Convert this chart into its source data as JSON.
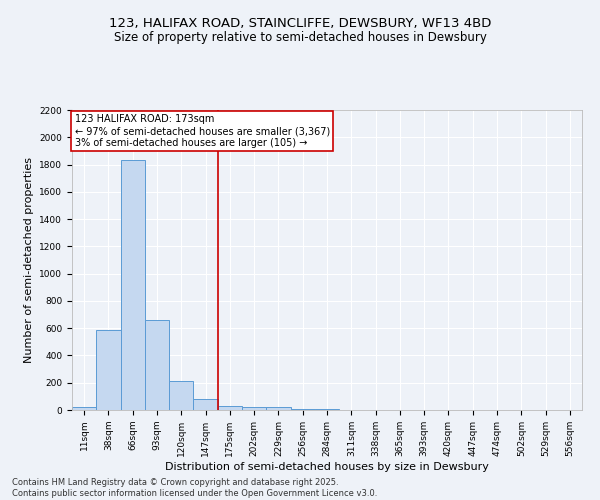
{
  "title1": "123, HALIFAX ROAD, STAINCLIFFE, DEWSBURY, WF13 4BD",
  "title2": "Size of property relative to semi-detached houses in Dewsbury",
  "xlabel": "Distribution of semi-detached houses by size in Dewsbury",
  "ylabel": "Number of semi-detached properties",
  "categories": [
    "11sqm",
    "38sqm",
    "66sqm",
    "93sqm",
    "120sqm",
    "147sqm",
    "175sqm",
    "202sqm",
    "229sqm",
    "256sqm",
    "284sqm",
    "311sqm",
    "338sqm",
    "365sqm",
    "393sqm",
    "420sqm",
    "447sqm",
    "474sqm",
    "502sqm",
    "529sqm",
    "556sqm"
  ],
  "values": [
    20,
    590,
    1830,
    660,
    210,
    80,
    30,
    20,
    20,
    10,
    10,
    0,
    0,
    0,
    0,
    0,
    0,
    0,
    0,
    0,
    0
  ],
  "bar_color": "#c5d8f0",
  "bar_edge_color": "#5b9bd5",
  "vline_color": "#cc0000",
  "annotation_text": "123 HALIFAX ROAD: 173sqm\n← 97% of semi-detached houses are smaller (3,367)\n3% of semi-detached houses are larger (105) →",
  "annotation_box_color": "#ffffff",
  "annotation_box_edge_color": "#cc0000",
  "ylim": [
    0,
    2200
  ],
  "yticks": [
    0,
    200,
    400,
    600,
    800,
    1000,
    1200,
    1400,
    1600,
    1800,
    2000,
    2200
  ],
  "footer1": "Contains HM Land Registry data © Crown copyright and database right 2025.",
  "footer2": "Contains public sector information licensed under the Open Government Licence v3.0.",
  "bg_color": "#eef2f8",
  "grid_color": "#ffffff",
  "title1_fontsize": 9.5,
  "title2_fontsize": 8.5,
  "tick_fontsize": 6.5,
  "label_fontsize": 8,
  "footer_fontsize": 6,
  "annotation_fontsize": 7
}
